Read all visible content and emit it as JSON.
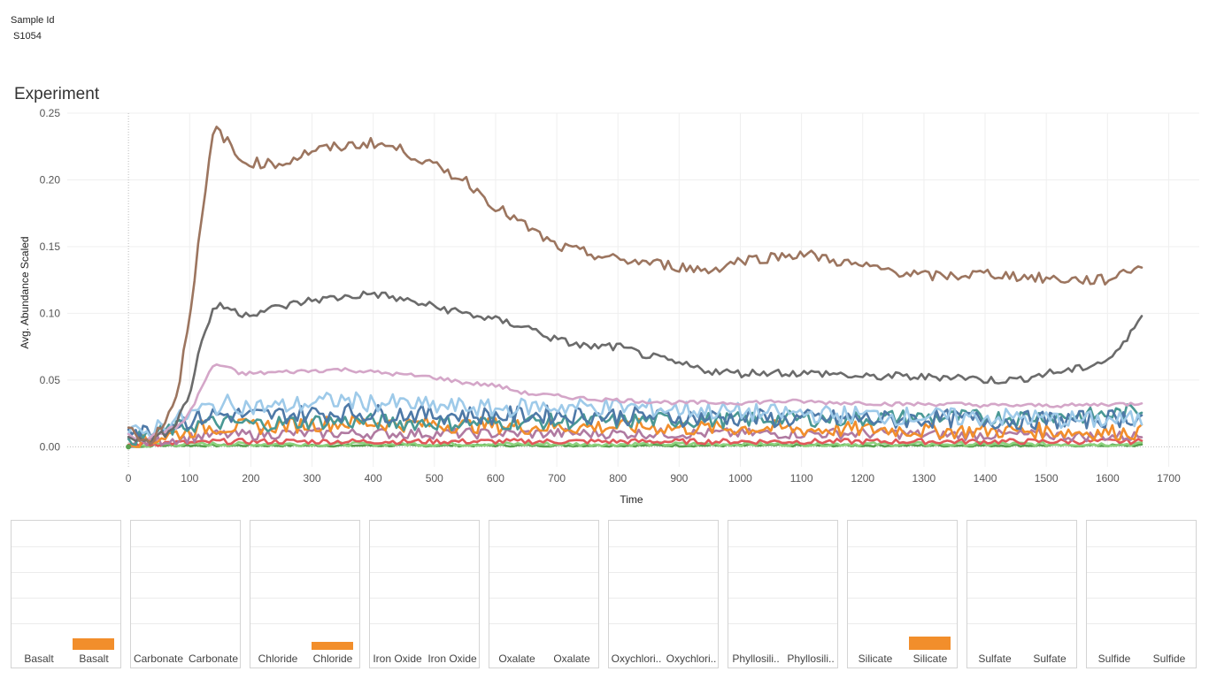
{
  "filter": {
    "label": "Sample Id",
    "value": "S1054"
  },
  "chart_title": "Experiment",
  "chart_data": [
    {
      "type": "line",
      "xlabel": "Time",
      "ylabel": "Avg. Abundance Scaled",
      "xlim": [
        -100,
        1750
      ],
      "ylim": [
        -0.015,
        0.25
      ],
      "x_ticks": [
        "0",
        "100",
        "200",
        "300",
        "400",
        "500",
        "600",
        "700",
        "800",
        "900",
        "1000",
        "1100",
        "1200",
        "1300",
        "1400",
        "1500",
        "1600",
        "1700"
      ],
      "y_ticks": [
        "0.00",
        "0.05",
        "0.10",
        "0.15",
        "0.20",
        "0.25"
      ],
      "grid": true,
      "x": [
        0,
        20,
        40,
        60,
        80,
        100,
        120,
        140,
        160,
        180,
        200,
        250,
        300,
        350,
        400,
        450,
        500,
        550,
        600,
        650,
        700,
        750,
        800,
        850,
        900,
        950,
        1000,
        1050,
        1100,
        1150,
        1200,
        1250,
        1300,
        1350,
        1400,
        1450,
        1500,
        1550,
        1600,
        1630,
        1660
      ],
      "series": [
        {
          "color": "#9c755f",
          "noise": 0.004,
          "values": [
            0.018,
            0.003,
            0.006,
            0.02,
            0.04,
            0.1,
            0.17,
            0.24,
            0.23,
            0.215,
            0.213,
            0.212,
            0.222,
            0.225,
            0.228,
            0.222,
            0.21,
            0.2,
            0.18,
            0.165,
            0.15,
            0.145,
            0.14,
            0.138,
            0.135,
            0.132,
            0.14,
            0.142,
            0.145,
            0.14,
            0.135,
            0.132,
            0.128,
            0.128,
            0.13,
            0.128,
            0.126,
            0.125,
            0.125,
            0.132,
            0.137
          ]
        },
        {
          "color": "#6b6b6b",
          "noise": 0.003,
          "values": [
            0.01,
            0.004,
            0.006,
            0.01,
            0.02,
            0.04,
            0.08,
            0.105,
            0.105,
            0.1,
            0.1,
            0.105,
            0.11,
            0.112,
            0.115,
            0.11,
            0.105,
            0.1,
            0.095,
            0.09,
            0.08,
            0.075,
            0.075,
            0.068,
            0.062,
            0.057,
            0.055,
            0.056,
            0.055,
            0.055,
            0.052,
            0.053,
            0.052,
            0.053,
            0.05,
            0.05,
            0.055,
            0.058,
            0.065,
            0.078,
            0.104
          ]
        },
        {
          "color": "#d4a6c8",
          "noise": 0.0015,
          "values": [
            0.01,
            0.005,
            0.008,
            0.012,
            0.015,
            0.025,
            0.045,
            0.062,
            0.06,
            0.055,
            0.055,
            0.056,
            0.057,
            0.058,
            0.056,
            0.054,
            0.052,
            0.048,
            0.046,
            0.04,
            0.038,
            0.036,
            0.035,
            0.034,
            0.033,
            0.033,
            0.033,
            0.034,
            0.034,
            0.033,
            0.033,
            0.032,
            0.032,
            0.032,
            0.031,
            0.031,
            0.031,
            0.031,
            0.032,
            0.032,
            0.033
          ]
        },
        {
          "color": "#9ecae9",
          "noise": 0.007,
          "values": [
            0.012,
            0.008,
            0.014,
            0.018,
            0.02,
            0.024,
            0.028,
            0.03,
            0.032,
            0.032,
            0.03,
            0.03,
            0.033,
            0.035,
            0.033,
            0.032,
            0.03,
            0.03,
            0.028,
            0.03,
            0.03,
            0.03,
            0.03,
            0.029,
            0.028,
            0.027,
            0.026,
            0.025,
            0.025,
            0.024,
            0.024,
            0.023,
            0.023,
            0.022,
            0.022,
            0.022,
            0.021,
            0.02,
            0.02,
            0.02,
            0.02
          ]
        },
        {
          "color": "#4e79a7",
          "noise": 0.007,
          "values": [
            0.018,
            0.01,
            0.014,
            0.015,
            0.018,
            0.02,
            0.022,
            0.024,
            0.024,
            0.024,
            0.023,
            0.024,
            0.025,
            0.026,
            0.025,
            0.025,
            0.024,
            0.024,
            0.023,
            0.024,
            0.024,
            0.024,
            0.023,
            0.023,
            0.022,
            0.022,
            0.022,
            0.021,
            0.021,
            0.021,
            0.021,
            0.02,
            0.021,
            0.021,
            0.02,
            0.02,
            0.02,
            0.02,
            0.021,
            0.022,
            0.022
          ]
        },
        {
          "color": "#499894",
          "noise": 0.006,
          "values": [
            0.008,
            0.006,
            0.01,
            0.012,
            0.014,
            0.016,
            0.017,
            0.018,
            0.018,
            0.018,
            0.017,
            0.018,
            0.019,
            0.019,
            0.019,
            0.018,
            0.018,
            0.018,
            0.018,
            0.019,
            0.019,
            0.019,
            0.019,
            0.02,
            0.02,
            0.02,
            0.02,
            0.021,
            0.021,
            0.021,
            0.021,
            0.022,
            0.022,
            0.022,
            0.022,
            0.022,
            0.023,
            0.023,
            0.024,
            0.026,
            0.028
          ]
        },
        {
          "color": "#f28e2b",
          "noise": 0.006,
          "values": [
            0.005,
            0.004,
            0.006,
            0.008,
            0.01,
            0.012,
            0.014,
            0.015,
            0.015,
            0.015,
            0.015,
            0.016,
            0.017,
            0.018,
            0.018,
            0.017,
            0.017,
            0.016,
            0.016,
            0.015,
            0.015,
            0.015,
            0.015,
            0.015,
            0.014,
            0.014,
            0.014,
            0.014,
            0.013,
            0.013,
            0.013,
            0.013,
            0.012,
            0.012,
            0.012,
            0.012,
            0.012,
            0.011,
            0.011,
            0.011,
            0.011
          ]
        },
        {
          "color": "#b07aa1",
          "noise": 0.004,
          "values": [
            0.003,
            0.003,
            0.004,
            0.005,
            0.006,
            0.007,
            0.008,
            0.009,
            0.009,
            0.009,
            0.009,
            0.01,
            0.01,
            0.01,
            0.01,
            0.01,
            0.01,
            0.01,
            0.01,
            0.01,
            0.01,
            0.01,
            0.01,
            0.01,
            0.01,
            0.01,
            0.01,
            0.01,
            0.01,
            0.01,
            0.01,
            0.01,
            0.009,
            0.009,
            0.009,
            0.009,
            0.009,
            0.008,
            0.008,
            0.008,
            0.008
          ]
        },
        {
          "color": "#e15759",
          "noise": 0.002,
          "values": [
            0.002,
            0.002,
            0.002,
            0.003,
            0.003,
            0.003,
            0.003,
            0.004,
            0.004,
            0.004,
            0.004,
            0.004,
            0.004,
            0.004,
            0.004,
            0.004,
            0.004,
            0.004,
            0.004,
            0.004,
            0.004,
            0.004,
            0.004,
            0.004,
            0.004,
            0.004,
            0.004,
            0.004,
            0.004,
            0.004,
            0.004,
            0.004,
            0.004,
            0.004,
            0.004,
            0.004,
            0.004,
            0.004,
            0.004,
            0.004,
            0.004
          ]
        },
        {
          "color": "#8cd17d",
          "noise": 0.0015,
          "values": [
            0.001,
            0.001,
            0.001,
            0.002,
            0.002,
            0.002,
            0.002,
            0.002,
            0.002,
            0.002,
            0.002,
            0.002,
            0.002,
            0.002,
            0.002,
            0.002,
            0.002,
            0.002,
            0.002,
            0.002,
            0.002,
            0.002,
            0.002,
            0.002,
            0.002,
            0.002,
            0.002,
            0.002,
            0.002,
            0.002,
            0.002,
            0.002,
            0.002,
            0.002,
            0.002,
            0.002,
            0.002,
            0.002,
            0.002,
            0.002,
            0.002
          ]
        },
        {
          "color": "#59a14f",
          "noise": 0.0008,
          "values": [
            0.0,
            0.0,
            0.001,
            0.001,
            0.001,
            0.001,
            0.001,
            0.001,
            0.001,
            0.001,
            0.001,
            0.001,
            0.001,
            0.001,
            0.001,
            0.001,
            0.001,
            0.001,
            0.001,
            0.001,
            0.001,
            0.001,
            0.001,
            0.001,
            0.001,
            0.001,
            0.001,
            0.001,
            0.001,
            0.001,
            0.001,
            0.001,
            0.001,
            0.001,
            0.001,
            0.001,
            0.001,
            0.001,
            0.001,
            0.001,
            0.001
          ]
        }
      ]
    },
    {
      "type": "bar",
      "bar_color": "#f28e2b",
      "ylim": [
        0,
        1
      ],
      "panels": [
        {
          "left": "Basalt",
          "right": "Basalt",
          "value": 0.09
        },
        {
          "left": "Carbonate",
          "right": "Carbonate",
          "value": 0
        },
        {
          "left": "Chloride",
          "right": "Chloride",
          "value": 0.06
        },
        {
          "left": "Iron Oxide",
          "right": "Iron Oxide",
          "value": 0
        },
        {
          "left": "Oxalate",
          "right": "Oxalate",
          "value": 0
        },
        {
          "left": "Oxychlori..",
          "right": "Oxychlori..",
          "value": 0
        },
        {
          "left": "Phyllosili..",
          "right": "Phyllosili..",
          "value": 0
        },
        {
          "left": "Silicate",
          "right": "Silicate",
          "value": 0.1
        },
        {
          "left": "Sulfate",
          "right": "Sulfate",
          "value": 0
        },
        {
          "left": "Sulfide",
          "right": "Sulfide",
          "value": 0
        }
      ]
    }
  ]
}
